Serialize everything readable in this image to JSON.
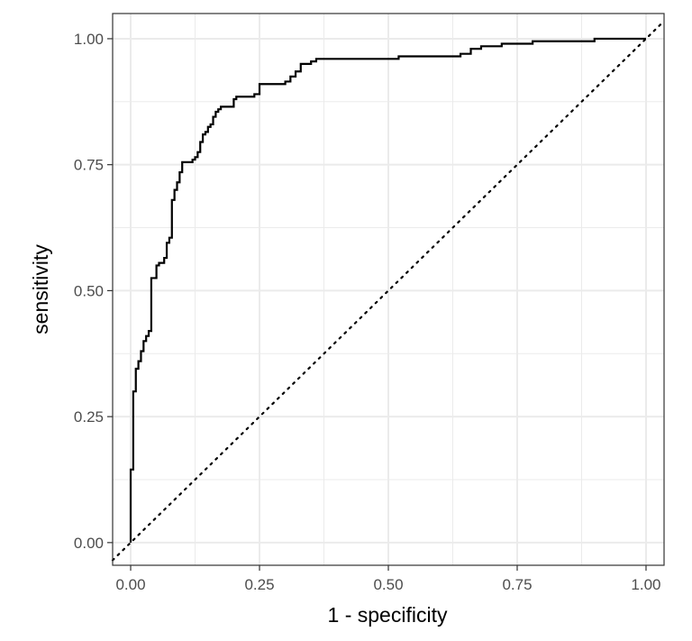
{
  "chart_data": {
    "type": "line",
    "xlabel": "1 - specificity",
    "ylabel": "sensitivity",
    "xlim": [
      -0.035,
      1.035
    ],
    "ylim": [
      -0.045,
      1.05
    ],
    "x_ticks": [
      0.0,
      0.25,
      0.5,
      0.75,
      1.0
    ],
    "x_tick_labels": [
      "0.00",
      "0.25",
      "0.50",
      "0.75",
      "1.00"
    ],
    "y_ticks": [
      0.0,
      0.25,
      0.5,
      0.75,
      1.0
    ],
    "y_tick_labels": [
      "0.00",
      "0.25",
      "0.50",
      "0.75",
      "1.00"
    ],
    "grid": true,
    "colors": {
      "curve": "#000000",
      "grid": "#ebebeb",
      "panel_border": "#333333"
    },
    "series": [
      {
        "style": "step",
        "x": [
          0.0,
          0.0,
          0.005,
          0.005,
          0.01,
          0.01,
          0.015,
          0.015,
          0.02,
          0.02,
          0.025,
          0.025,
          0.03,
          0.03,
          0.035,
          0.035,
          0.04,
          0.04,
          0.05,
          0.05,
          0.055,
          0.055,
          0.065,
          0.065,
          0.07,
          0.07,
          0.075,
          0.075,
          0.08,
          0.08,
          0.085,
          0.085,
          0.09,
          0.09,
          0.095,
          0.095,
          0.1,
          0.1,
          0.12,
          0.12,
          0.125,
          0.125,
          0.13,
          0.13,
          0.135,
          0.135,
          0.14,
          0.14,
          0.145,
          0.145,
          0.15,
          0.15,
          0.155,
          0.155,
          0.16,
          0.16,
          0.165,
          0.165,
          0.17,
          0.17,
          0.175,
          0.175,
          0.18,
          0.18,
          0.2,
          0.2,
          0.205,
          0.205,
          0.23,
          0.23,
          0.24,
          0.24,
          0.25,
          0.25,
          0.3,
          0.3,
          0.31,
          0.31,
          0.32,
          0.32,
          0.33,
          0.33,
          0.35,
          0.35,
          0.36,
          0.36,
          0.38,
          0.38,
          0.48,
          0.48,
          0.5,
          0.5,
          0.52,
          0.52,
          0.64,
          0.64,
          0.66,
          0.66,
          0.68,
          0.68,
          0.72,
          0.72,
          0.78,
          0.78,
          0.9,
          0.9,
          1.0
        ],
        "y": [
          0.0,
          0.145,
          0.145,
          0.3,
          0.3,
          0.345,
          0.345,
          0.36,
          0.36,
          0.38,
          0.38,
          0.4,
          0.4,
          0.41,
          0.41,
          0.42,
          0.42,
          0.525,
          0.525,
          0.55,
          0.55,
          0.555,
          0.555,
          0.565,
          0.565,
          0.595,
          0.595,
          0.605,
          0.605,
          0.68,
          0.68,
          0.7,
          0.7,
          0.715,
          0.715,
          0.735,
          0.735,
          0.755,
          0.755,
          0.76,
          0.76,
          0.765,
          0.765,
          0.775,
          0.775,
          0.795,
          0.795,
          0.81,
          0.81,
          0.815,
          0.815,
          0.825,
          0.825,
          0.83,
          0.83,
          0.845,
          0.845,
          0.855,
          0.855,
          0.86,
          0.86,
          0.865,
          0.865,
          0.865,
          0.865,
          0.88,
          0.88,
          0.885,
          0.885,
          0.885,
          0.885,
          0.89,
          0.89,
          0.91,
          0.91,
          0.915,
          0.915,
          0.925,
          0.925,
          0.935,
          0.935,
          0.95,
          0.95,
          0.955,
          0.955,
          0.96,
          0.96,
          0.96,
          0.96,
          0.96,
          0.96,
          0.96,
          0.96,
          0.965,
          0.965,
          0.97,
          0.97,
          0.98,
          0.98,
          0.985,
          0.985,
          0.99,
          0.99,
          0.995,
          0.995,
          1.0,
          1.0
        ]
      },
      {
        "style": "dotted",
        "x": [
          -0.035,
          1.035
        ],
        "y": [
          -0.035,
          1.035
        ]
      }
    ]
  }
}
